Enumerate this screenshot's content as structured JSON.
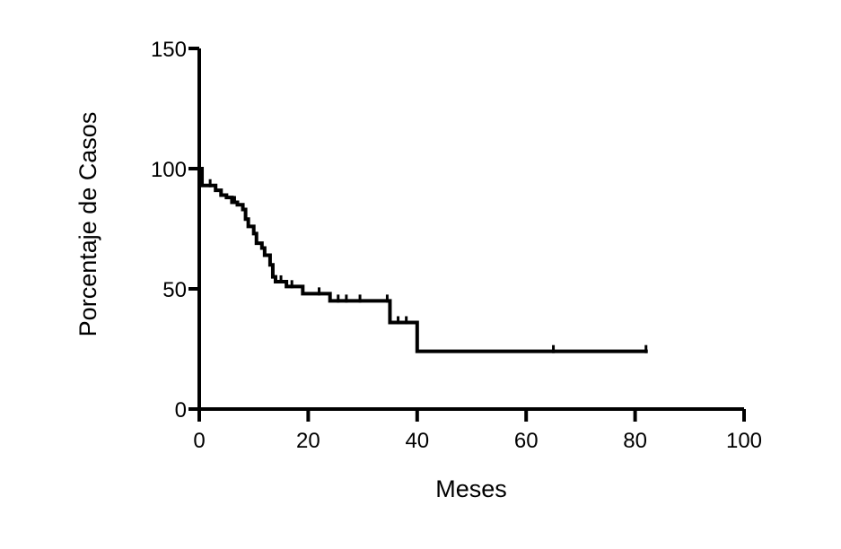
{
  "chart_data": {
    "type": "line",
    "subtype": "kaplan-meier-step",
    "title": "",
    "xlabel": "Meses",
    "ylabel": "Porcentaje de Casos",
    "xlim": [
      0,
      100
    ],
    "ylim": [
      0,
      150
    ],
    "xticks": [
      0,
      20,
      40,
      60,
      80,
      100
    ],
    "yticks": [
      0,
      50,
      100,
      150
    ],
    "grid": false,
    "legend": "none",
    "line_color": "#000000",
    "series": [
      {
        "steps": [
          {
            "x": 0,
            "y": 100
          },
          {
            "x": 0.5,
            "y": 93
          },
          {
            "x": 3,
            "y": 91
          },
          {
            "x": 4,
            "y": 89
          },
          {
            "x": 5,
            "y": 88
          },
          {
            "x": 6,
            "y": 86
          },
          {
            "x": 7,
            "y": 85
          },
          {
            "x": 8,
            "y": 83
          },
          {
            "x": 8.5,
            "y": 79
          },
          {
            "x": 9,
            "y": 76
          },
          {
            "x": 10,
            "y": 73
          },
          {
            "x": 10.5,
            "y": 69
          },
          {
            "x": 11.5,
            "y": 67
          },
          {
            "x": 12,
            "y": 64
          },
          {
            "x": 13,
            "y": 60
          },
          {
            "x": 13.5,
            "y": 55
          },
          {
            "x": 14,
            "y": 53
          },
          {
            "x": 16,
            "y": 51
          },
          {
            "x": 19,
            "y": 48
          },
          {
            "x": 24,
            "y": 45
          },
          {
            "x": 35,
            "y": 36
          },
          {
            "x": 40,
            "y": 24
          },
          {
            "x": 82,
            "y": 24
          }
        ],
        "censored": [
          {
            "x": 2,
            "y": 93
          },
          {
            "x": 6.5,
            "y": 86
          },
          {
            "x": 15,
            "y": 53
          },
          {
            "x": 17,
            "y": 51
          },
          {
            "x": 22,
            "y": 48
          },
          {
            "x": 25.5,
            "y": 45
          },
          {
            "x": 27,
            "y": 45
          },
          {
            "x": 29.5,
            "y": 45
          },
          {
            "x": 34.5,
            "y": 45
          },
          {
            "x": 36.5,
            "y": 36
          },
          {
            "x": 38,
            "y": 36
          },
          {
            "x": 65,
            "y": 24
          },
          {
            "x": 82,
            "y": 24
          }
        ]
      }
    ]
  }
}
